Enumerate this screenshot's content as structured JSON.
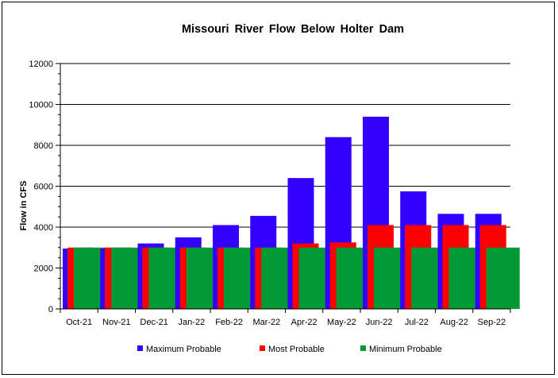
{
  "chart_data": {
    "type": "bar",
    "title": "Missouri River Flow Below Holter Dam",
    "xlabel": "",
    "ylabel": "Flow in CFS",
    "ylim": [
      0,
      12000
    ],
    "yticks": [
      0,
      2000,
      4000,
      6000,
      8000,
      10000,
      12000
    ],
    "ytick_labels": [
      "0",
      "2000",
      "4000",
      "6000",
      "8000",
      "10000",
      "12000"
    ],
    "grid": true,
    "legend_position": "bottom",
    "categories": [
      "Oct-21",
      "Nov-21",
      "Dec-21",
      "Jan-22",
      "Feb-22",
      "Mar-22",
      "Apr-22",
      "May-22",
      "Jun-22",
      "Jul-22",
      "Aug-22",
      "Sep-22"
    ],
    "series": [
      {
        "name": "Maximum Probable",
        "color": "#3300ff",
        "values": [
          2950,
          2950,
          3200,
          3500,
          4100,
          4550,
          6400,
          8400,
          9400,
          5750,
          4650,
          4650
        ]
      },
      {
        "name": "Most Probable",
        "color": "#ff0000",
        "values": [
          3000,
          3000,
          3000,
          3000,
          3000,
          3000,
          3200,
          3250,
          4100,
          4100,
          4100,
          4100
        ]
      },
      {
        "name": "Minimum Probable",
        "color": "#009933",
        "values": [
          3000,
          3000,
          3000,
          3000,
          3000,
          3000,
          3000,
          3000,
          3000,
          3000,
          3000,
          3000
        ]
      }
    ]
  }
}
